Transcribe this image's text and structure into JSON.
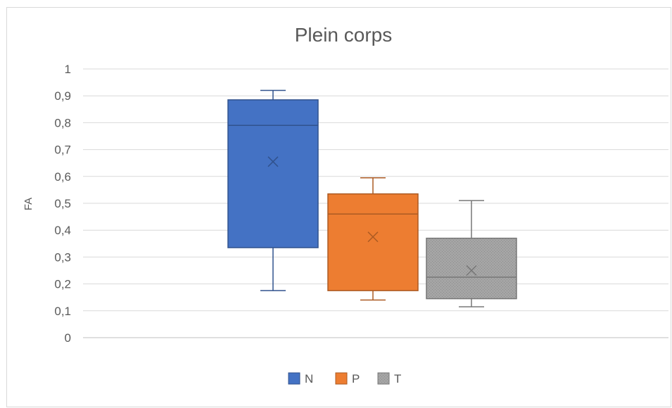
{
  "chart_data": {
    "type": "box",
    "title": "Plein corps",
    "xlabel": "",
    "ylabel": "FA",
    "ylim": [
      0,
      1
    ],
    "yticks": [
      0,
      0.1,
      0.2,
      0.3,
      0.4,
      0.5,
      0.6,
      0.7,
      0.8,
      0.9,
      1
    ],
    "ytick_labels": [
      "0",
      "0,1",
      "0,2",
      "0,3",
      "0,4",
      "0,5",
      "0,6",
      "0,7",
      "0,8",
      "0,9",
      "1"
    ],
    "grid": true,
    "legend_position": "bottom",
    "series": [
      {
        "name": "N",
        "color": "#4472C4",
        "min": 0.175,
        "q1": 0.335,
        "median": 0.79,
        "q3": 0.885,
        "max": 0.92,
        "mean": 0.655
      },
      {
        "name": "P",
        "color": "#ED7D31",
        "min": 0.14,
        "q1": 0.175,
        "median": 0.46,
        "q3": 0.535,
        "max": 0.595,
        "mean": 0.375
      },
      {
        "name": "T",
        "color": "#A5A5A5",
        "min": 0.115,
        "q1": 0.145,
        "median": 0.225,
        "q3": 0.37,
        "max": 0.51,
        "mean": 0.25
      }
    ]
  }
}
